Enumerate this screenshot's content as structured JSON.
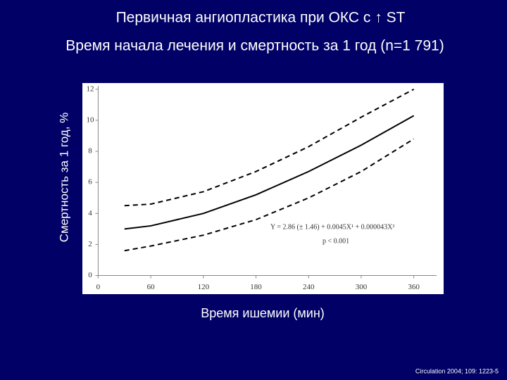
{
  "chart_data": {
    "type": "line",
    "title": "Первичная ангиопластика при ОКС с ↑ ST",
    "subtitle": "Время начала лечения и смертность за 1 год (n=1 791)",
    "y_label": "Смертность за 1 год, %",
    "x_label": "Время ишемии (мин)",
    "annotations": [
      "Y = 2.86 (± 1.46) + 0.0045X¹ + 0.000043X²",
      "p < 0.001"
    ],
    "source": "Circulation 2004; 109: 1223-5",
    "x": [
      30,
      60,
      120,
      180,
      240,
      300,
      360
    ],
    "series": [
      {
        "color": "#000000",
        "dashed": false,
        "values": [
          3.0,
          3.2,
          4.0,
          5.2,
          6.7,
          8.4,
          10.3
        ]
      },
      {
        "color": "#000000",
        "dashed": true,
        "values": [
          4.5,
          4.6,
          5.4,
          6.7,
          8.3,
          10.2,
          12.0
        ]
      },
      {
        "color": "#000000",
        "dashed": true,
        "values": [
          1.6,
          1.9,
          2.6,
          3.6,
          5.0,
          6.7,
          8.8
        ]
      }
    ],
    "xlim": [
      -18,
      394
    ],
    "xticks": [
      0,
      60,
      120,
      180,
      240,
      300,
      360
    ],
    "ylim": [
      -1.2,
      12.4
    ],
    "yticks": [
      0,
      2,
      4,
      6,
      8,
      10,
      12
    ]
  }
}
